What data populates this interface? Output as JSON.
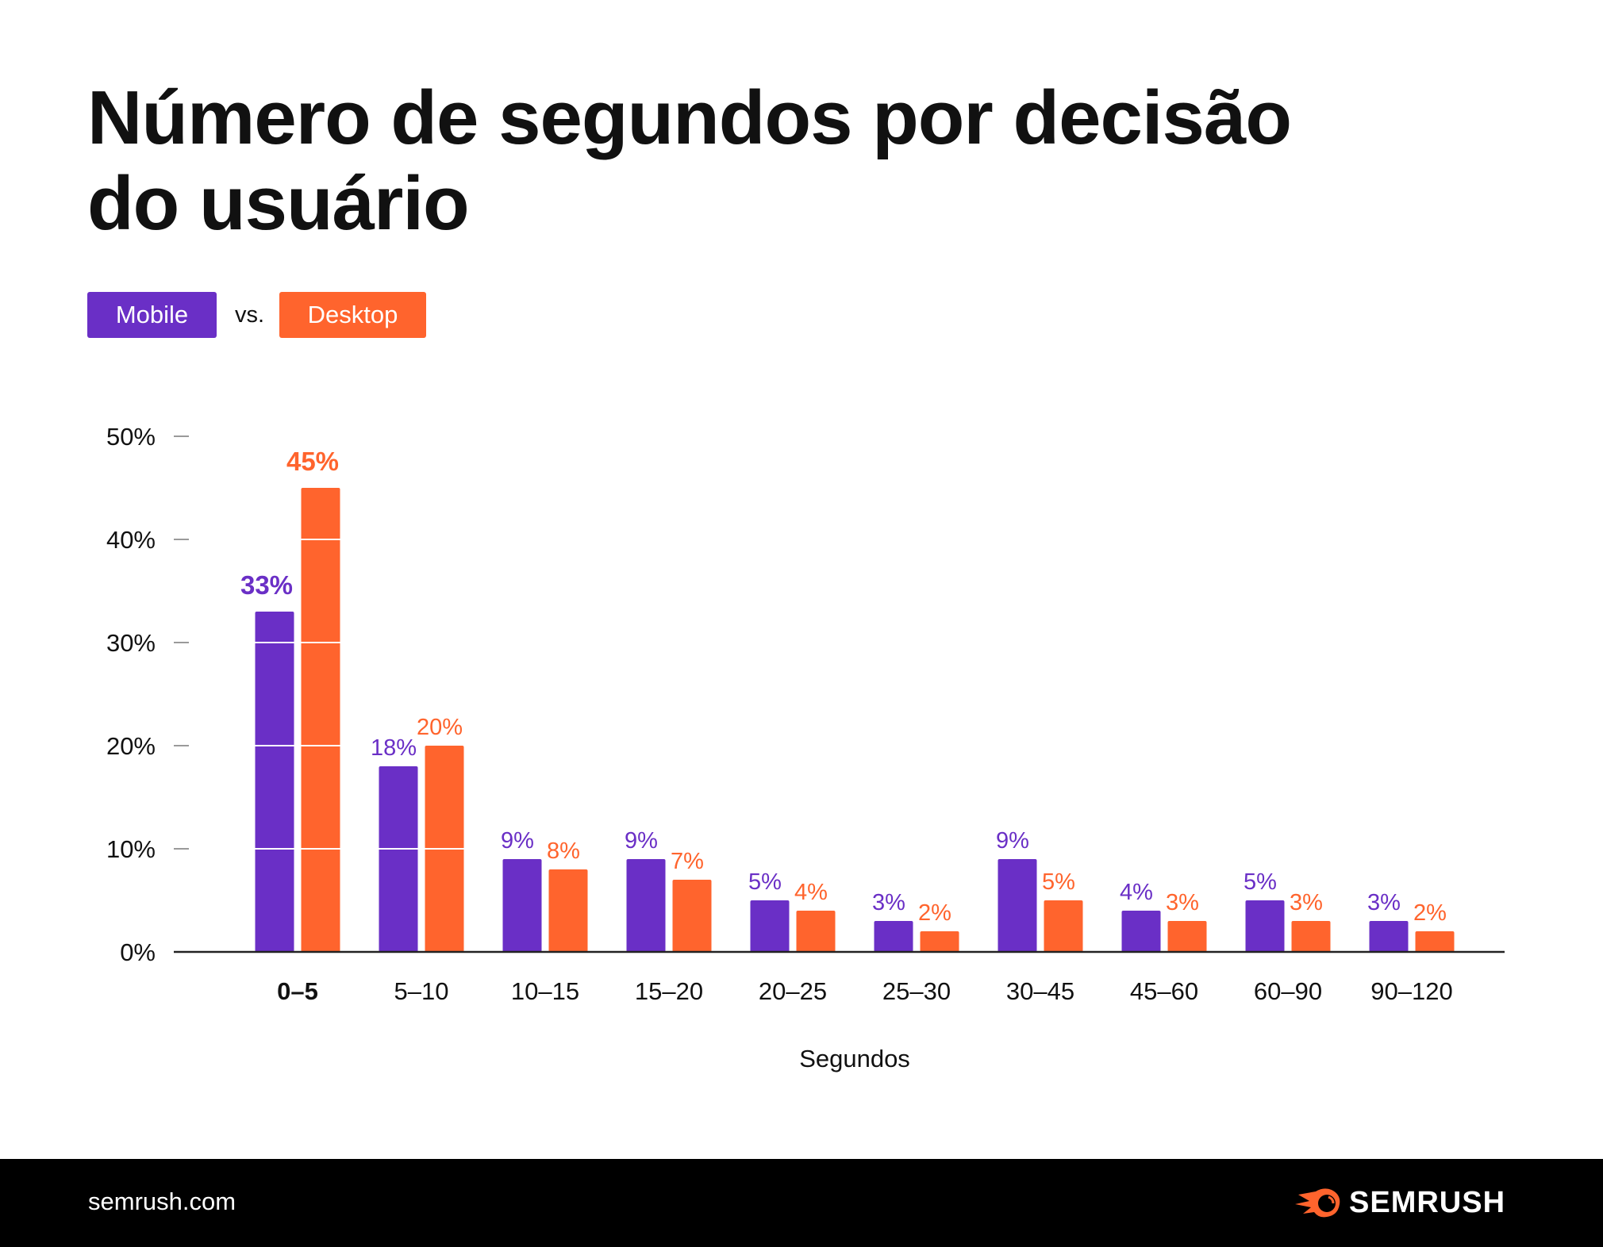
{
  "title": "Número de segundos por decisão do usuário",
  "legend": {
    "mobile": "Mobile",
    "vs": "vs.",
    "desktop": "Desktop"
  },
  "footer": {
    "site": "semrush.com",
    "brand": "SEMRUSH"
  },
  "colors": {
    "mobile": "#6a2fc6",
    "desktop": "#ff642d",
    "axis": "#222222",
    "tick": "#9a9a9a"
  },
  "chart_data": {
    "type": "bar",
    "title": "Número de segundos por decisão do usuário",
    "xlabel": "Segundos",
    "ylabel": "",
    "ylim": [
      0,
      50
    ],
    "yticks": [
      "0%",
      "10%",
      "20%",
      "30%",
      "40%",
      "50%"
    ],
    "categories": [
      "0–5",
      "5–10",
      "10–15",
      "15–20",
      "20–25",
      "25–30",
      "30–45",
      "45–60",
      "60–90",
      "90–120"
    ],
    "series": [
      {
        "name": "Mobile",
        "values": [
          33,
          18,
          9,
          9,
          5,
          3,
          9,
          4,
          5,
          3
        ],
        "labels": [
          "33%",
          "18%",
          "9%",
          "9%",
          "5%",
          "3%",
          "9%",
          "4%",
          "5%",
          "3%"
        ]
      },
      {
        "name": "Desktop",
        "values": [
          45,
          20,
          8,
          7,
          4,
          2,
          5,
          3,
          3,
          2
        ],
        "labels": [
          "45%",
          "20%",
          "8%",
          "7%",
          "4%",
          "2%",
          "5%",
          "3%",
          "3%",
          "2%"
        ]
      }
    ],
    "grid": false,
    "legend_position": "top-left"
  }
}
